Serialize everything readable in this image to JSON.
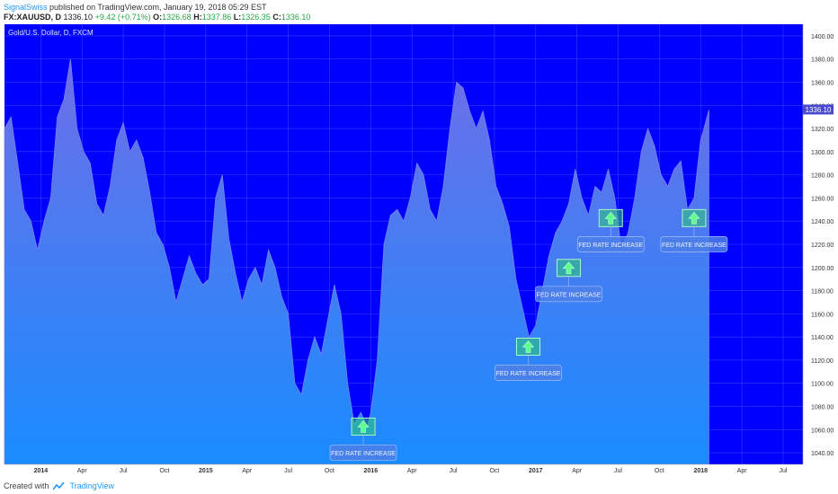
{
  "header": {
    "author": "SignalSwiss",
    "published_text": "published on TradingView.com, January 19, 2018 05:29 EST",
    "symbol": "FX:XAUUSD, D",
    "last": "1336.10",
    "change": "+9.42 (+0.71%)",
    "open_label": "O:",
    "open": "1326.68",
    "high_label": "H:",
    "high": "1337.86",
    "low_label": "L:",
    "low": "1326.35",
    "close_label": "C:",
    "close": "1336.10"
  },
  "footer": {
    "created_with": "Created with",
    "brand": "TradingView"
  },
  "icons": [
    "tradingview-logo-icon",
    "arrow-up-icon"
  ],
  "colors": {
    "background": "#0000ff",
    "area_top": "#6e6ee8",
    "area_bottom": "#1a8cff",
    "price_tag": "#4848d0",
    "marker_green": "#2ecc71"
  },
  "chart_data": {
    "type": "area",
    "title": "Gold/U.S. Dollar, D, FXCM",
    "ylim": [
      1030,
      1410
    ],
    "y_ticks": [
      1040,
      1060,
      1080,
      1100,
      1120,
      1140,
      1160,
      1180,
      1200,
      1220,
      1240,
      1260,
      1280,
      1300,
      1320,
      1340,
      1360,
      1380,
      1400
    ],
    "x_ticks": [
      {
        "label": "2014",
        "t": 2014.0
      },
      {
        "label": "Apr",
        "t": 2014.25
      },
      {
        "label": "Jul",
        "t": 2014.5
      },
      {
        "label": "Oct",
        "t": 2014.75
      },
      {
        "label": "2015",
        "t": 2015.0
      },
      {
        "label": "Apr",
        "t": 2015.25
      },
      {
        "label": "Jul",
        "t": 2015.5
      },
      {
        "label": "Oct",
        "t": 2015.75
      },
      {
        "label": "2016",
        "t": 2016.0
      },
      {
        "label": "Apr",
        "t": 2016.25
      },
      {
        "label": "Jul",
        "t": 2016.5
      },
      {
        "label": "Oct",
        "t": 2016.75
      },
      {
        "label": "2017",
        "t": 2017.0
      },
      {
        "label": "Apr",
        "t": 2017.25
      },
      {
        "label": "Jul",
        "t": 2017.5
      },
      {
        "label": "Oct",
        "t": 2017.75
      },
      {
        "label": "2018",
        "t": 2018.0
      },
      {
        "label": "Apr",
        "t": 2018.25
      },
      {
        "label": "Jul",
        "t": 2018.5
      }
    ],
    "x": [
      2013.78,
      2013.82,
      2013.86,
      2013.9,
      2013.94,
      2013.98,
      2014.02,
      2014.06,
      2014.1,
      2014.14,
      2014.18,
      2014.22,
      2014.26,
      2014.3,
      2014.34,
      2014.38,
      2014.42,
      2014.46,
      2014.5,
      2014.54,
      2014.58,
      2014.62,
      2014.66,
      2014.7,
      2014.74,
      2014.78,
      2014.82,
      2014.86,
      2014.9,
      2014.94,
      2014.98,
      2015.02,
      2015.06,
      2015.1,
      2015.14,
      2015.18,
      2015.22,
      2015.26,
      2015.3,
      2015.34,
      2015.38,
      2015.42,
      2015.46,
      2015.5,
      2015.54,
      2015.58,
      2015.62,
      2015.66,
      2015.7,
      2015.74,
      2015.78,
      2015.82,
      2015.86,
      2015.9,
      2015.94,
      2015.98,
      2016.0,
      2016.04,
      2016.08,
      2016.12,
      2016.16,
      2016.2,
      2016.24,
      2016.28,
      2016.32,
      2016.36,
      2016.4,
      2016.44,
      2016.48,
      2016.52,
      2016.56,
      2016.6,
      2016.64,
      2016.68,
      2016.72,
      2016.76,
      2016.8,
      2016.84,
      2016.88,
      2016.92,
      2016.96,
      2017.0,
      2017.04,
      2017.08,
      2017.12,
      2017.16,
      2017.2,
      2017.24,
      2017.28,
      2017.32,
      2017.36,
      2017.4,
      2017.44,
      2017.48,
      2017.52,
      2017.56,
      2017.6,
      2017.64,
      2017.68,
      2017.72,
      2017.76,
      2017.8,
      2017.84,
      2017.88,
      2017.92,
      2017.96,
      2018.0,
      2018.02,
      2018.05
    ],
    "series": [
      {
        "values": [
          1320,
          1330,
          1290,
          1250,
          1240,
          1215,
          1240,
          1260,
          1330,
          1345,
          1380,
          1320,
          1300,
          1290,
          1255,
          1245,
          1270,
          1310,
          1325,
          1300,
          1310,
          1295,
          1265,
          1230,
          1220,
          1200,
          1170,
          1190,
          1210,
          1195,
          1185,
          1190,
          1260,
          1280,
          1225,
          1195,
          1170,
          1190,
          1200,
          1185,
          1215,
          1200,
          1175,
          1160,
          1100,
          1090,
          1120,
          1140,
          1125,
          1155,
          1185,
          1160,
          1100,
          1065,
          1075,
          1062,
          1075,
          1120,
          1220,
          1245,
          1250,
          1240,
          1260,
          1290,
          1280,
          1250,
          1240,
          1270,
          1320,
          1360,
          1355,
          1335,
          1320,
          1335,
          1310,
          1270,
          1255,
          1235,
          1190,
          1165,
          1140,
          1150,
          1180,
          1210,
          1230,
          1240,
          1255,
          1285,
          1260,
          1245,
          1270,
          1265,
          1285,
          1260,
          1215,
          1230,
          1260,
          1300,
          1320,
          1305,
          1280,
          1270,
          1285,
          1292,
          1250,
          1260,
          1310,
          1320,
          1336
        ]
      }
    ],
    "last_value": "1336.10",
    "annotations": [
      {
        "label": "FED RATE INCREASE",
        "t": 2015.955,
        "y": 1063
      },
      {
        "label": "FED RATE INCREASE",
        "t": 2016.955,
        "y": 1132
      },
      {
        "label": "FED RATE INCREASE",
        "t": 2017.2,
        "y": 1200
      },
      {
        "label": "FED RATE INCREASE",
        "t": 2017.455,
        "y": 1243
      },
      {
        "label": "FED RATE INCREASE",
        "t": 2017.96,
        "y": 1243
      }
    ]
  }
}
